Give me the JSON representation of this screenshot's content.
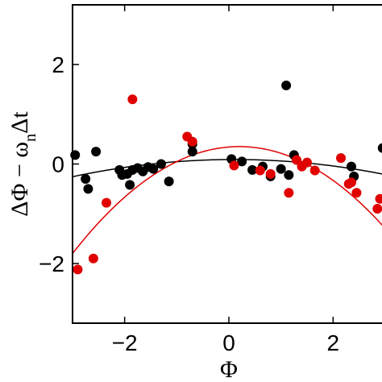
{
  "chart_data": {
    "type": "scatter",
    "title": "",
    "xlabel": "Φ",
    "ylabel": "ΔΦ − ωnΔt",
    "ylabel_parts": {
      "main": "ΔΦ − ω",
      "sub": "n",
      "tail": "Δt"
    },
    "xlim": [
      -3,
      3
    ],
    "ylim": [
      -3.2,
      3.2
    ],
    "xticks": [
      -2,
      0,
      2
    ],
    "xtick_labels": [
      "−2",
      "0",
      "2"
    ],
    "yticks": [
      -2,
      0,
      2
    ],
    "ytick_labels": [
      "−2",
      "0",
      "2"
    ],
    "grid": false,
    "legend": "none",
    "series": [
      {
        "color": "#000000",
        "points": [
          [
            -2.95,
            0.18
          ],
          [
            -2.75,
            -0.3
          ],
          [
            -2.7,
            -0.5
          ],
          [
            -2.55,
            0.25
          ],
          [
            -2.1,
            -0.12
          ],
          [
            -2.05,
            -0.22
          ],
          [
            -1.95,
            -0.2
          ],
          [
            -1.9,
            -0.42
          ],
          [
            -1.85,
            -0.12
          ],
          [
            -1.75,
            -0.08
          ],
          [
            -1.65,
            -0.15
          ],
          [
            -1.55,
            -0.06
          ],
          [
            -1.45,
            -0.1
          ],
          [
            -1.3,
            0.0
          ],
          [
            -1.15,
            -0.35
          ],
          [
            -0.7,
            0.25
          ],
          [
            -0.7,
            0.4
          ],
          [
            0.05,
            0.1
          ],
          [
            0.25,
            0.05
          ],
          [
            0.45,
            -0.12
          ],
          [
            0.65,
            -0.05
          ],
          [
            0.8,
            -0.25
          ],
          [
            1.0,
            -0.1
          ],
          [
            1.1,
            1.58
          ],
          [
            1.15,
            -0.22
          ],
          [
            1.25,
            0.18
          ],
          [
            2.35,
            -0.05
          ],
          [
            2.4,
            -0.25
          ],
          [
            2.95,
            0.32
          ]
        ]
      },
      {
        "color": "#e00000",
        "points": [
          [
            -2.9,
            -2.12
          ],
          [
            -2.6,
            -1.9
          ],
          [
            -2.35,
            -0.78
          ],
          [
            -1.85,
            1.3
          ],
          [
            -0.8,
            0.55
          ],
          [
            -0.7,
            0.45
          ],
          [
            0.1,
            -0.03
          ],
          [
            0.6,
            -0.13
          ],
          [
            0.8,
            -0.2
          ],
          [
            1.15,
            -0.58
          ],
          [
            1.3,
            0.08
          ],
          [
            1.4,
            -0.05
          ],
          [
            1.5,
            0.03
          ],
          [
            1.65,
            -0.13
          ],
          [
            2.15,
            0.12
          ],
          [
            2.3,
            -0.4
          ],
          [
            2.35,
            -0.37
          ],
          [
            2.45,
            -0.58
          ],
          [
            2.9,
            -0.7
          ],
          [
            2.85,
            -0.9
          ]
        ]
      }
    ],
    "fits": [
      {
        "color": "#000000",
        "form": "y = 0.09 - 0.036*(x - 0.1)^2"
      },
      {
        "color": "#e00000",
        "form": "y = 0.35 - 0.21*(x - 0.2)^2"
      }
    ]
  }
}
